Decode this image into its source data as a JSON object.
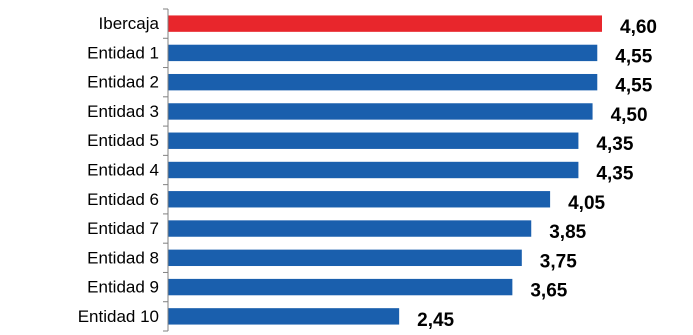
{
  "chart_data": {
    "type": "bar",
    "orientation": "horizontal",
    "categories": [
      "Ibercaja",
      "Entidad 1",
      "Entidad 2",
      "Entidad 3",
      "Entidad 5",
      "Entidad 4",
      "Entidad 6",
      "Entidad 7",
      "Entidad 8",
      "Entidad 9",
      "Entidad 10"
    ],
    "values": [
      4.6,
      4.55,
      4.55,
      4.5,
      4.35,
      4.35,
      4.05,
      3.85,
      3.75,
      3.65,
      2.45
    ],
    "value_labels": [
      "4,60",
      "4,55",
      "4,55",
      "4,50",
      "4,35",
      "4,35",
      "4,05",
      "3,85",
      "3,75",
      "3,65",
      "2,45"
    ],
    "colors": [
      "#E8262C",
      "#1A5FAD",
      "#1A5FAD",
      "#1A5FAD",
      "#1A5FAD",
      "#1A5FAD",
      "#1A5FAD",
      "#1A5FAD",
      "#1A5FAD",
      "#1A5FAD",
      "#1A5FAD"
    ],
    "xlim": [
      0,
      4.6
    ],
    "grid": false,
    "legend": "none"
  }
}
